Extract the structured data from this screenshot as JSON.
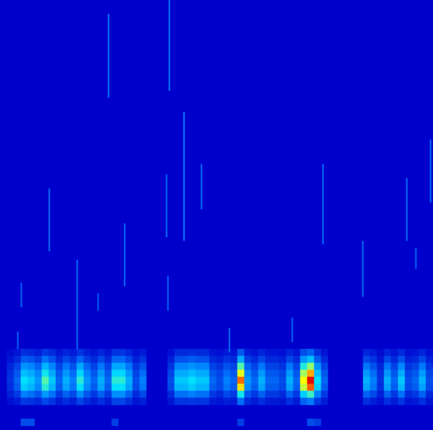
{
  "chart_data": {
    "type": "heatmap",
    "tick_labels": false,
    "xlim": [
      0,
      620
    ],
    "ylim": [
      0,
      616
    ],
    "zlim": [
      0,
      1
    ],
    "x": [
      5,
      15,
      25,
      35,
      45,
      55,
      65,
      75,
      85,
      95,
      105,
      115,
      125,
      135,
      145,
      155,
      165,
      175,
      185,
      195,
      205,
      215,
      225,
      235,
      245,
      255,
      265,
      275,
      285,
      295,
      305,
      315,
      325,
      335,
      345,
      355,
      365,
      375,
      385,
      395,
      405,
      415,
      425,
      435,
      445,
      455,
      465,
      475,
      485,
      495,
      505,
      515,
      525,
      535,
      545,
      555,
      565,
      575,
      585,
      595,
      605,
      615
    ],
    "y": [
      111,
      101,
      91,
      81,
      71,
      61,
      51,
      41,
      11
    ],
    "z": [
      [
        0,
        0.02,
        0.04,
        0.09,
        0.08,
        0.06,
        0.11,
        0.08,
        0.04,
        0.07,
        0.05,
        0.1,
        0.06,
        0.04,
        0.07,
        0.04,
        0.1,
        0.1,
        0.07,
        0.03,
        0.05,
        0,
        0,
        0,
        0.03,
        0.08,
        0.08,
        0.09,
        0.08,
        0.08,
        0.04,
        0.03,
        0.05,
        0.04,
        0.17,
        0.06,
        0.04,
        0.07,
        0.04,
        0.04,
        0.03,
        0.07,
        0.04,
        0.15,
        0.19,
        0.09,
        0.04,
        0,
        0,
        0,
        0,
        0,
        0.07,
        0.05,
        0.02,
        0.07,
        0.04,
        0.08,
        0.03,
        0.04,
        0.07,
        0.03
      ],
      [
        0,
        0.04,
        0.08,
        0.18,
        0.16,
        0.12,
        0.22,
        0.16,
        0.08,
        0.14,
        0.1,
        0.2,
        0.12,
        0.08,
        0.14,
        0.08,
        0.2,
        0.2,
        0.14,
        0.06,
        0.1,
        0,
        0,
        0,
        0.06,
        0.16,
        0.16,
        0.18,
        0.16,
        0.16,
        0.08,
        0.06,
        0.1,
        0.08,
        0.34,
        0.12,
        0.08,
        0.14,
        0.08,
        0.08,
        0.06,
        0.14,
        0.08,
        0.3,
        0.38,
        0.18,
        0.08,
        0,
        0,
        0,
        0,
        0,
        0.14,
        0.1,
        0.04,
        0.14,
        0.08,
        0.16,
        0.06,
        0.08,
        0.14,
        0.06
      ],
      [
        0,
        0.07,
        0.13,
        0.29,
        0.26,
        0.2,
        0.36,
        0.26,
        0.13,
        0.23,
        0.16,
        0.33,
        0.2,
        0.13,
        0.23,
        0.13,
        0.33,
        0.33,
        0.23,
        0.1,
        0.16,
        0,
        0,
        0,
        0.1,
        0.26,
        0.26,
        0.29,
        0.26,
        0.26,
        0.13,
        0.1,
        0.16,
        0.13,
        0.55,
        0.2,
        0.13,
        0.23,
        0.13,
        0.13,
        0.1,
        0.23,
        0.13,
        0.49,
        0.62,
        0.29,
        0.13,
        0,
        0,
        0,
        0,
        0,
        0.23,
        0.16,
        0.07,
        0.23,
        0.13,
        0.26,
        0.1,
        0.13,
        0.23,
        0.1
      ],
      [
        0,
        0.09,
        0.17,
        0.38,
        0.34,
        0.26,
        0.47,
        0.34,
        0.17,
        0.3,
        0.21,
        0.43,
        0.26,
        0.17,
        0.3,
        0.17,
        0.43,
        0.43,
        0.3,
        0.13,
        0.21,
        0,
        0,
        0,
        0.13,
        0.34,
        0.34,
        0.38,
        0.34,
        0.34,
        0.17,
        0.13,
        0.21,
        0.17,
        0.72,
        0.26,
        0.17,
        0.3,
        0.17,
        0.17,
        0.13,
        0.3,
        0.17,
        0.64,
        0.81,
        0.38,
        0.17,
        0,
        0,
        0,
        0,
        0,
        0.3,
        0.21,
        0.09,
        0.3,
        0.17,
        0.34,
        0.13,
        0.17,
        0.3,
        0.13
      ],
      [
        0,
        0.1,
        0.2,
        0.45,
        0.4,
        0.3,
        0.55,
        0.4,
        0.2,
        0.35,
        0.25,
        0.5,
        0.3,
        0.2,
        0.35,
        0.2,
        0.5,
        0.5,
        0.35,
        0.15,
        0.25,
        0,
        0,
        0,
        0.15,
        0.4,
        0.4,
        0.45,
        0.4,
        0.4,
        0.2,
        0.15,
        0.25,
        0.2,
        0.85,
        0.3,
        0.2,
        0.35,
        0.2,
        0.2,
        0.15,
        0.35,
        0.2,
        0.75,
        0.95,
        0.45,
        0.2,
        0,
        0,
        0,
        0,
        0,
        0.35,
        0.25,
        0.1,
        0.35,
        0.2,
        0.4,
        0.15,
        0.2,
        0.35,
        0.15
      ],
      [
        0,
        0.09,
        0.18,
        0.41,
        0.36,
        0.27,
        0.5,
        0.36,
        0.18,
        0.32,
        0.23,
        0.45,
        0.27,
        0.18,
        0.32,
        0.18,
        0.45,
        0.45,
        0.32,
        0.14,
        0.23,
        0,
        0,
        0,
        0.14,
        0.36,
        0.36,
        0.41,
        0.36,
        0.36,
        0.18,
        0.14,
        0.23,
        0.18,
        0.77,
        0.27,
        0.18,
        0.32,
        0.18,
        0.18,
        0.14,
        0.32,
        0.18,
        0.68,
        0.86,
        0.41,
        0.18,
        0,
        0,
        0,
        0,
        0,
        0.32,
        0.23,
        0.09,
        0.32,
        0.18,
        0.36,
        0.14,
        0.18,
        0.32,
        0.14
      ],
      [
        0,
        0.06,
        0.11,
        0.25,
        0.22,
        0.17,
        0.3,
        0.22,
        0.11,
        0.19,
        0.14,
        0.28,
        0.17,
        0.11,
        0.19,
        0.11,
        0.28,
        0.28,
        0.19,
        0.08,
        0.14,
        0,
        0,
        0,
        0.08,
        0.22,
        0.22,
        0.25,
        0.22,
        0.22,
        0.11,
        0.08,
        0.14,
        0.11,
        0.47,
        0.17,
        0.11,
        0.19,
        0.11,
        0.11,
        0.08,
        0.19,
        0.11,
        0.41,
        0.52,
        0.25,
        0.11,
        0,
        0,
        0,
        0,
        0,
        0.19,
        0.14,
        0.06,
        0.19,
        0.11,
        0.22,
        0.08,
        0.11,
        0.19,
        0.08
      ],
      [
        0,
        0.03,
        0.05,
        0.11,
        0.1,
        0.08,
        0.14,
        0.1,
        0.05,
        0.09,
        0.06,
        0.13,
        0.08,
        0.05,
        0.09,
        0.05,
        0.13,
        0.13,
        0.09,
        0.04,
        0.06,
        0,
        0,
        0,
        0.04,
        0.1,
        0.1,
        0.11,
        0.1,
        0.1,
        0.05,
        0.04,
        0.06,
        0.05,
        0.21,
        0.08,
        0.05,
        0.09,
        0.05,
        0.05,
        0.04,
        0.09,
        0.05,
        0.19,
        0.24,
        0.11,
        0.05,
        0,
        0,
        0,
        0,
        0,
        0.09,
        0.06,
        0.03,
        0.09,
        0.05,
        0.1,
        0.04,
        0.05,
        0.09,
        0.04
      ],
      [
        0,
        0,
        0,
        0.15,
        0.15,
        0,
        0,
        0,
        0,
        0,
        0,
        0,
        0,
        0,
        0,
        0,
        0.12,
        0,
        0,
        0,
        0,
        0,
        0,
        0,
        0,
        0,
        0,
        0,
        0,
        0,
        0,
        0,
        0,
        0,
        0.12,
        0,
        0,
        0,
        0,
        0,
        0,
        0,
        0,
        0,
        0.15,
        0.12,
        0,
        0,
        0,
        0,
        0,
        0,
        0,
        0,
        0,
        0,
        0,
        0,
        0,
        0,
        0,
        0
      ]
    ],
    "streaks": [
      {
        "x": 155,
        "y1": 476,
        "y2": 596,
        "value": 0.25
      },
      {
        "x": 242,
        "y1": 486,
        "y2": 616,
        "value": 0.25
      },
      {
        "x": 263,
        "y1": 271,
        "y2": 456,
        "value": 0.25
      },
      {
        "x": 288,
        "y1": 316,
        "y2": 381,
        "value": 0.22
      },
      {
        "x": 238,
        "y1": 276,
        "y2": 366,
        "value": 0.22
      },
      {
        "x": 70,
        "y1": 256,
        "y2": 346,
        "value": 0.22
      },
      {
        "x": 178,
        "y1": 206,
        "y2": 296,
        "value": 0.22
      },
      {
        "x": 110,
        "y1": 116,
        "y2": 244,
        "value": 0.22
      },
      {
        "x": 140,
        "y1": 171,
        "y2": 196,
        "value": 0.2
      },
      {
        "x": 30,
        "y1": 176,
        "y2": 211,
        "value": 0.2
      },
      {
        "x": 462,
        "y1": 266,
        "y2": 381,
        "value": 0.22
      },
      {
        "x": 519,
        "y1": 191,
        "y2": 271,
        "value": 0.22
      },
      {
        "x": 582,
        "y1": 271,
        "y2": 361,
        "value": 0.22
      },
      {
        "x": 595,
        "y1": 231,
        "y2": 261,
        "value": 0.2
      },
      {
        "x": 616,
        "y1": 326,
        "y2": 416,
        "value": 0.22
      },
      {
        "x": 240,
        "y1": 171,
        "y2": 221,
        "value": 0.2
      },
      {
        "x": 328,
        "y1": 111,
        "y2": 146,
        "value": 0.22
      },
      {
        "x": 418,
        "y1": 126,
        "y2": 161,
        "value": 0.2
      },
      {
        "x": 25,
        "y1": 116,
        "y2": 141,
        "value": 0.2
      }
    ]
  }
}
